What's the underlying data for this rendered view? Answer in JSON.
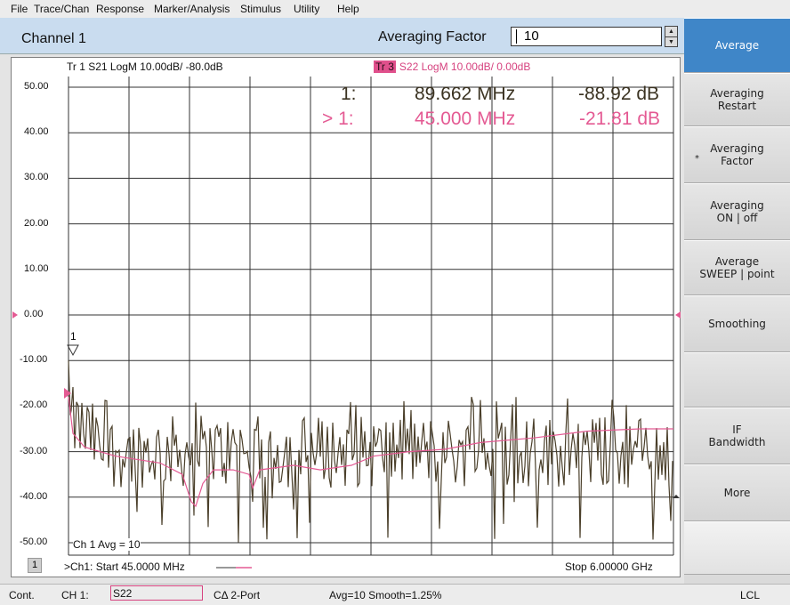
{
  "menu": [
    "File",
    "Trace/Chan",
    "Response",
    "Marker/Analysis",
    "Stimulus",
    "Utility",
    "Help"
  ],
  "channel_title": "Channel 1",
  "averaging": {
    "label": "Averaging Factor",
    "value": "10"
  },
  "trace1": {
    "label": "Tr 1  S21 LogM 10.00dB/  -80.0dB",
    "color": "#4a3f2a"
  },
  "trace3": {
    "badge": "Tr 3",
    "label": "S22 LogM 10.00dB/  0.00dB",
    "color": "#e45a93"
  },
  "y_ticks": [
    "50.00",
    "40.00",
    "30.00",
    "20.00",
    "10.00",
    "0.00",
    "-10.00",
    "-20.00",
    "-30.00",
    "-40.00",
    "-50.00"
  ],
  "markers": {
    "m1": {
      "id": "1:",
      "freq": "89.662 MHz",
      "value": "-88.92 dB"
    },
    "m2": {
      "id": "> 1:",
      "freq": "45.000 MHz",
      "value": "-21.81 dB"
    }
  },
  "marker_flag": "1",
  "channel_avg": "Ch 1 Avg =   10",
  "channel_number": "1",
  "start_label": ">Ch1: Start  45.0000 MHz",
  "stop_label": "Stop  6.00000 GHz",
  "softkeys": [
    {
      "label": "Average",
      "active": true
    },
    {
      "label": "Averaging\nRestart"
    },
    {
      "label": "Averaging\nFactor",
      "star": "*"
    },
    {
      "label": "Averaging\nON | off"
    },
    {
      "label": "Average\nSWEEP | point"
    },
    {
      "label": "Smoothing"
    },
    {
      "label": ""
    },
    {
      "label": "IF\nBandwidth"
    },
    {
      "label": "More"
    },
    {
      "label": ""
    }
  ],
  "status": {
    "mode": "Cont.",
    "ch": "CH 1:",
    "param": "S22",
    "cal": "CΔ 2-Port",
    "avg": "Avg=10 Smooth=1.25%",
    "lcl": "LCL"
  },
  "chart_data": {
    "type": "line",
    "ylim": [
      -50,
      50
    ],
    "xlim_mhz": [
      45,
      6000
    ],
    "grid": true,
    "series": [
      {
        "name": "S21",
        "note_values_db": "noisy ~ -20 to -45 (display scale)"
      },
      {
        "name": "S22",
        "values_db_sample": [
          -18,
          -28,
          -31,
          -33,
          -41,
          -34,
          -35,
          -33,
          -31,
          -30,
          -29,
          -27,
          -26
        ]
      }
    ]
  }
}
